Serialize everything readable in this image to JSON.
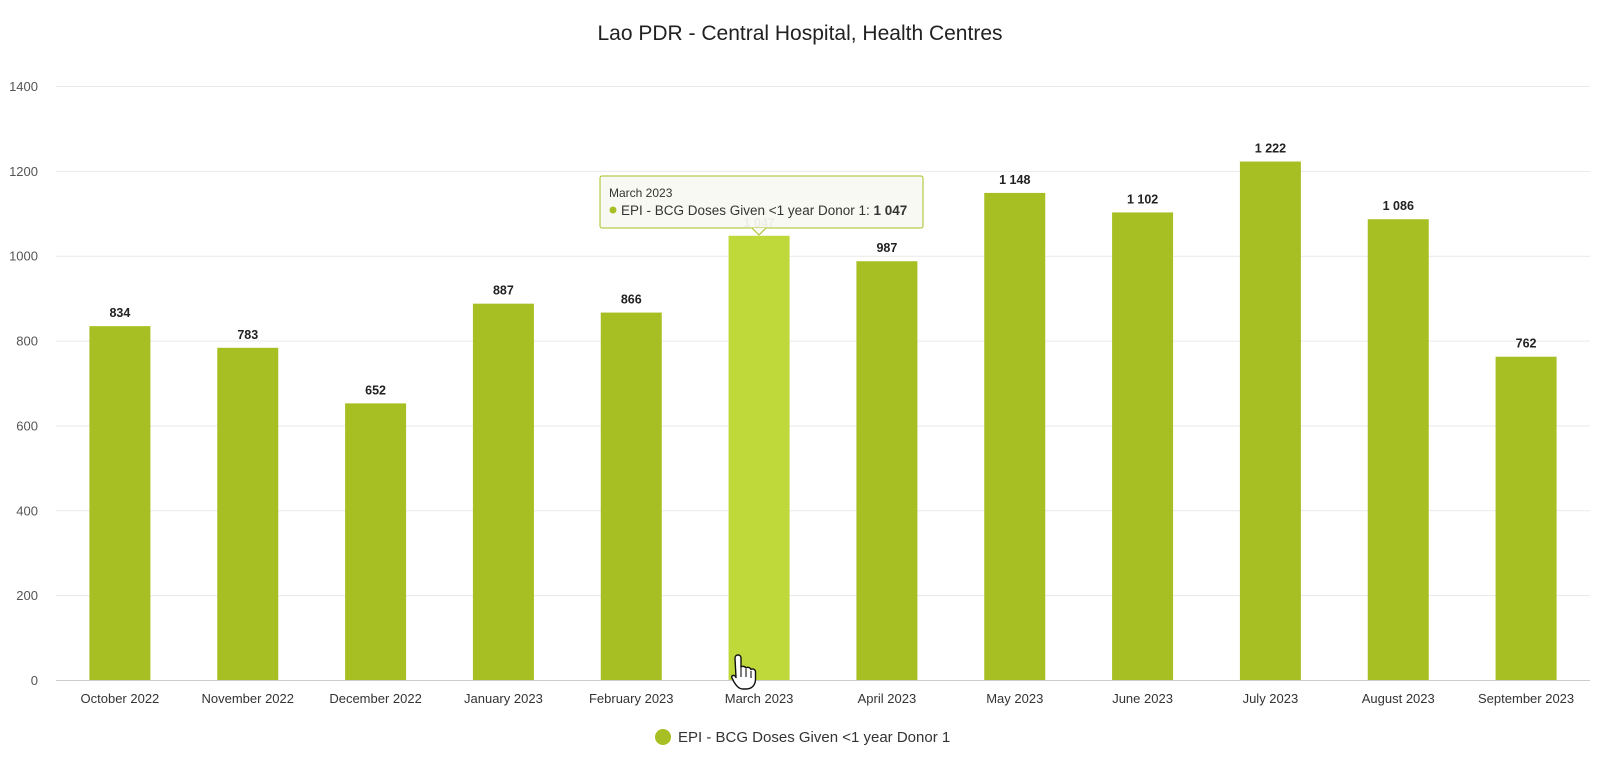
{
  "chart_data": {
    "type": "bar",
    "title": "Lao PDR - Central Hospital, Health Centres",
    "categories": [
      "October 2022",
      "November 2022",
      "December 2022",
      "January 2023",
      "February 2023",
      "March 2023",
      "April 2023",
      "May 2023",
      "June 2023",
      "July 2023",
      "August 2023",
      "September 2023"
    ],
    "series": [
      {
        "name": "EPI - BCG Doses Given <1 year Donor 1",
        "values": [
          834,
          783,
          652,
          887,
          866,
          1047,
          987,
          1148,
          1102,
          1222,
          1086,
          762
        ],
        "data_labels": [
          "834",
          "783",
          "652",
          "887",
          "866",
          "1 047",
          "987",
          "1 148",
          "1 102",
          "1 222",
          "1 086",
          "762"
        ],
        "color": "#a8bf24",
        "hover_color": "#bfd83a"
      }
    ],
    "ylim": [
      0,
      1400
    ],
    "yticks": [
      0,
      200,
      400,
      600,
      800,
      1000,
      1200,
      1400
    ],
    "grid": true,
    "legend": "bottom-center",
    "highlighted_index": 5,
    "tooltip": {
      "header": "March 2023",
      "series_label": "EPI - BCG Doses Given <1 year Donor 1: ",
      "value": "1 047"
    }
  }
}
